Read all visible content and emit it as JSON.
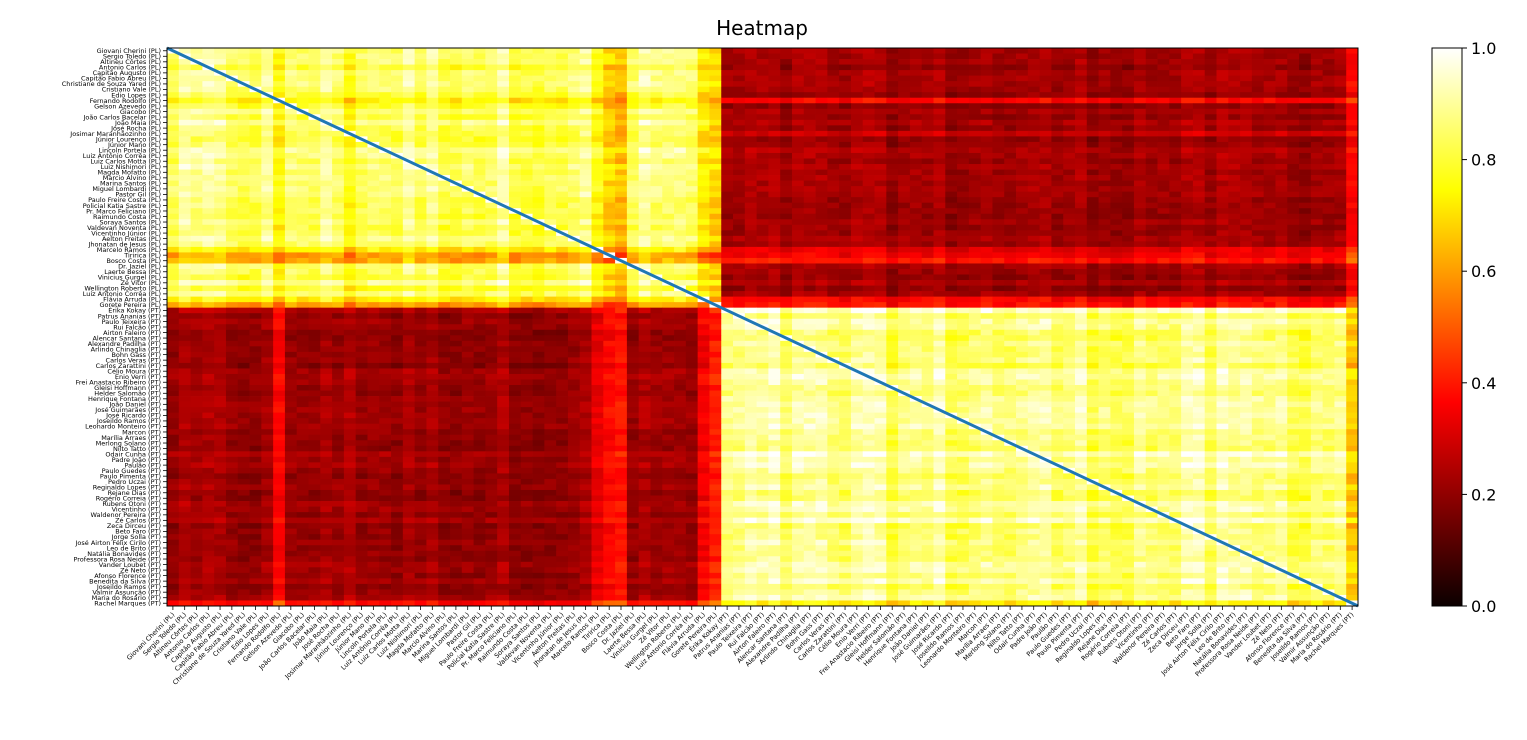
{
  "chart_data": {
    "type": "heatmap",
    "title": "Heatmap",
    "colormap": "hot",
    "colorbar": {
      "min": 0.0,
      "max": 1.0,
      "ticks": [
        "0.0",
        "0.2",
        "0.4",
        "0.6",
        "0.8",
        "1.0"
      ]
    },
    "diagonal_line_color": "#1f77b4",
    "labels": [
      "Giovani Cherini (PL)",
      "Sergio Toledo (PL)",
      "Altineu Côrtes (PL)",
      "Antonio Carlos (PL)",
      "Capitão Augusto (PL)",
      "Capitão Fabio Abreu (PL)",
      "Christiane de Souza Yared (PL)",
      "Cristiano Vale (PL)",
      "Edio Lopes (PL)",
      "Fernando Rodolfo (PL)",
      "Gelson Azevedo (PL)",
      "Giacobo (PL)",
      "João Carlos Bacelar (PL)",
      "João Maia (PL)",
      "José Rocha (PL)",
      "Josimar Maranhãozinho (PL)",
      "Júnior Lourenço (PL)",
      "Júnior Mano (PL)",
      "Lincoln Portela (PL)",
      "Luiz Antônio Corrêa (PL)",
      "Luiz Carlos Motta (PL)",
      "Luiz Nishimori (PL)",
      "Magda Mofatto (PL)",
      "Marcio Alvino (PL)",
      "Marina Santos (PL)",
      "Miguel Lombardi (PL)",
      "Pastor Gil (PL)",
      "Paulo Freire Costa (PL)",
      "Policial Katia Sastre (PL)",
      "Pr. Marco Feliciano (PL)",
      "Raimundo Costa (PL)",
      "Soraya Santos (PL)",
      "Valdevan Noventa (PL)",
      "Vicentinho Júnior (PL)",
      "Aelton Freitas (PL)",
      "Jhonatan de Jesus (PL)",
      "Marcelo Ramos (PL)",
      "Tiririca (PL)",
      "Bosco Costa (PL)",
      "Dr. Jaziel (PL)",
      "Laerte Bessa (PL)",
      "Vinicius Gurgel (PL)",
      "Zé Vitor (PL)",
      "Wellington Roberto (PL)",
      "Luiz Antonio Corrêa (PL)",
      "Flávia Arruda (PL)",
      "Gorete Pereira (PL)",
      "Érika Kokay (PT)",
      "Patrus Ananias (PT)",
      "Paulo Teixeira (PT)",
      "Rui Falcão (PT)",
      "Airton Faleiro (PT)",
      "Alencar Santana (PT)",
      "Alexandre Padilha (PT)",
      "Arlindo Chinaglia (PT)",
      "Bohn Gass (PT)",
      "Carlos Veras (PT)",
      "Carlos Zarattini (PT)",
      "Célio Moura (PT)",
      "Enio Verri (PT)",
      "Frei Anastacio Ribeiro (PT)",
      "Gleisi Hoffmann (PT)",
      "Helder Salomão (PT)",
      "Henrique Fontana (PT)",
      "João Daniel (PT)",
      "José Guimarães (PT)",
      "José Ricardo (PT)",
      "Joseildo Ramos (PT)",
      "Leonardo Monteiro (PT)",
      "Marcon (PT)",
      "Marília Arraes (PT)",
      "Merlong Solano (PT)",
      "Nilto Tatto (PT)",
      "Odair Cunha (PT)",
      "Padre João (PT)",
      "Paulão (PT)",
      "Paulo Guedes (PT)",
      "Paulo Pimenta (PT)",
      "Pedro Uczai (PT)",
      "Reginaldo Lopes (PT)",
      "Rejane Dias (PT)",
      "Rogério Correia (PT)",
      "Rubens Otoni (PT)",
      "Vicentinho (PT)",
      "Waldenor Pereira (PT)",
      "Zé Carlos (PT)",
      "Zeca Dirceu (PT)",
      "Beto Faro (PT)",
      "Jorge Solla (PT)",
      "José Airton Félix Cirilo (PT)",
      "Leo de Brito (PT)",
      "Natália Bonavides (PT)",
      "Professora Rosa Neide (PT)",
      "Vander Loubet (PT)",
      "Zé Neto (PT)",
      "Afonso Florence (PT)",
      "Benedita da Silva (PT)",
      "Joseildo Ramos (PT)",
      "Valmir Assunção (PT)",
      "Maria do Rosário (PT)",
      "Rachel Marques (PT)"
    ],
    "blocks": [
      {
        "party": "PL",
        "start": 0,
        "end": 47,
        "within_similarity": 0.85,
        "cross_similarity": 0.22
      },
      {
        "party": "PT",
        "start": 47,
        "end": 101,
        "within_similarity": 0.88,
        "cross_similarity": 0.22
      }
    ],
    "diagonal_value": 1.0
  }
}
